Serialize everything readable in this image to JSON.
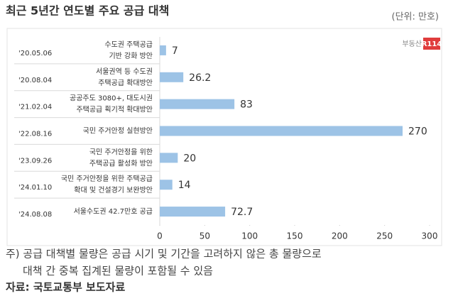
{
  "chart_data": {
    "type": "bar",
    "orientation": "horizontal",
    "title": "최근 5년간 연도별 주요 공급 대책",
    "unit": "(단위: 만호)",
    "logo": {
      "text": "부동산",
      "badge": "R114"
    },
    "dates": [
      "'20.05.06",
      "'20.08.04",
      "'21.02.04",
      "'22.08.16",
      "'23.09.26",
      "'24.01.10",
      "'24.08.08"
    ],
    "categories": [
      [
        "수도권 주택공급",
        "기반 강화 방안"
      ],
      [
        "서울권역 등 수도권",
        "주택공급 확대방안"
      ],
      [
        "공공주도 3080+, 대도시권",
        "주택공급 획기적 확대방안"
      ],
      [
        "국민 주거안정 실현방안"
      ],
      [
        "국민 주거안정을 위한",
        "주택공급 활성화 방안"
      ],
      [
        "국민 주거안정을 위한 주택공급",
        "확대 및 건설경기 보완방안"
      ],
      [
        "서울수도권 42.7만호 공급"
      ]
    ],
    "values": [
      7,
      26.2,
      83,
      270,
      20,
      14,
      72.7
    ],
    "color": "#9dc3e6",
    "xlim": [
      0,
      300
    ],
    "xticks": [
      0,
      50,
      100,
      150,
      200,
      250,
      300
    ],
    "notes": [
      "주) 공급 대책별 물량은 공급 시기 및 기간을 고려하지 않은 총 물량으로",
      "대책 간 중복 집계된 물량이 포함될 수 있음"
    ],
    "source": "자료: 국토교통부 보도자료"
  }
}
